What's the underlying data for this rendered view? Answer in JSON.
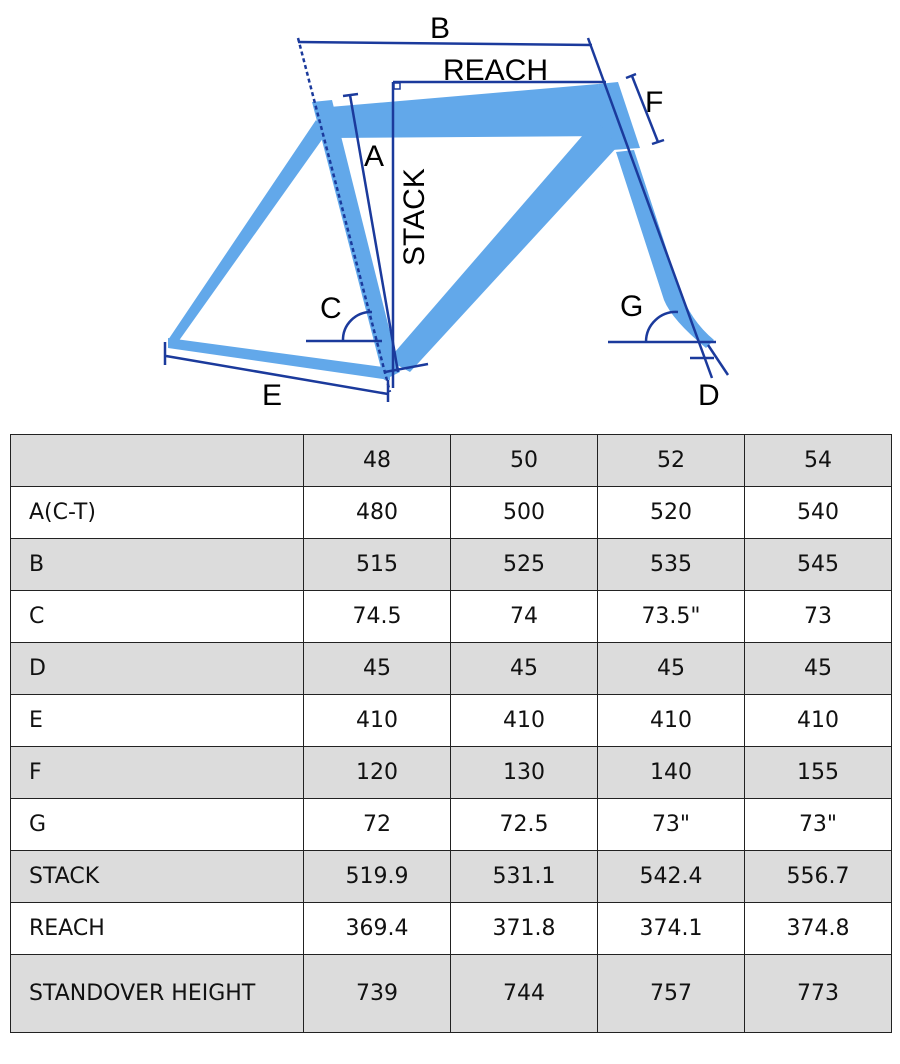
{
  "diagram": {
    "labels": {
      "a": "A",
      "b": "B",
      "c": "C",
      "d": "D",
      "e": "E",
      "f": "F",
      "g": "G",
      "stack": "STACK",
      "reach": "REACH"
    },
    "colors": {
      "frame": "#62a8ea",
      "lines": "#1b3a9c"
    }
  },
  "table": {
    "header": [
      "",
      "48",
      "50",
      "52",
      "54"
    ],
    "rows": [
      {
        "label": "A(C-T)",
        "values": [
          "480",
          "500",
          "520",
          "540"
        ]
      },
      {
        "label": "B",
        "values": [
          "515",
          "525",
          "535",
          "545"
        ]
      },
      {
        "label": "C",
        "values": [
          "74.5",
          "74",
          "73.5\"",
          "73"
        ]
      },
      {
        "label": "D",
        "values": [
          "45",
          "45",
          "45",
          "45"
        ]
      },
      {
        "label": "E",
        "values": [
          "410",
          "410",
          "410",
          "410"
        ]
      },
      {
        "label": "F",
        "values": [
          "120",
          "130",
          "140",
          "155"
        ]
      },
      {
        "label": "G",
        "values": [
          "72",
          "72.5",
          "73\"",
          "73\""
        ]
      },
      {
        "label": "STACK",
        "values": [
          "519.9",
          "531.1",
          "542.4",
          "556.7"
        ]
      },
      {
        "label": "REACH",
        "values": [
          "369.4",
          "371.8",
          "374.1",
          "374.8"
        ]
      },
      {
        "label": "STANDOVER HEIGHT",
        "values": [
          "739",
          "744",
          "757",
          "773"
        ]
      }
    ],
    "header_bg": "#dcdcdc"
  }
}
